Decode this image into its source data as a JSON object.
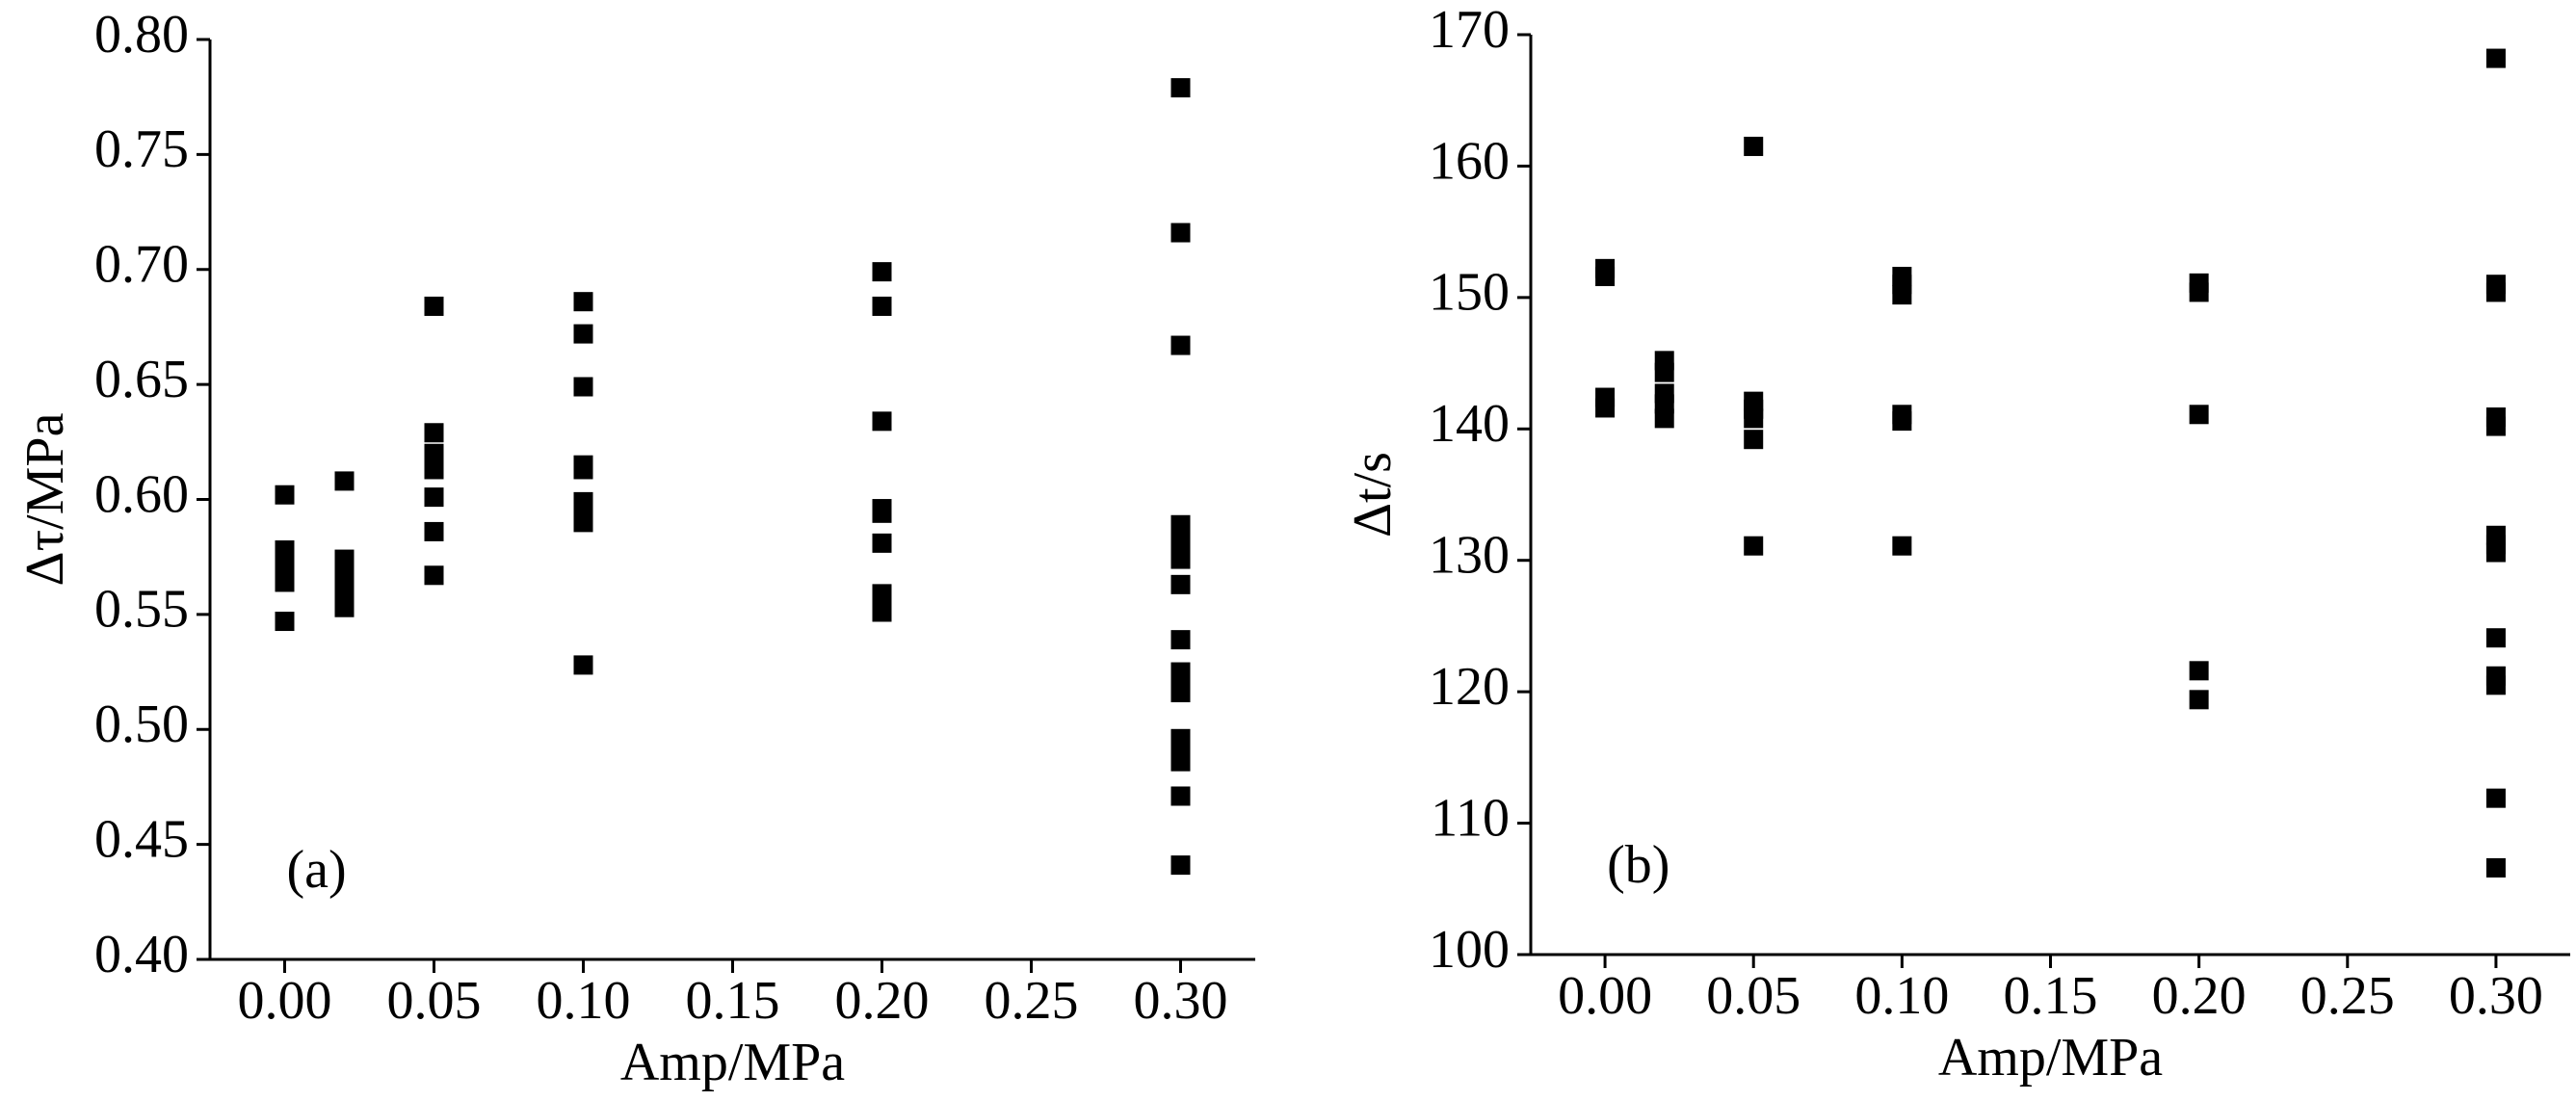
{
  "chart_data": [
    {
      "type": "scatter",
      "annotation": "(a)",
      "xlabel": "Amp/MPa",
      "ylabel": "Δτ/MPa",
      "color": "#000000",
      "x": [
        0,
        0,
        0,
        0,
        0,
        0.02,
        0.02,
        0.02,
        0.02,
        0.02,
        0.02,
        0.05,
        0.05,
        0.05,
        0.05,
        0.05,
        0.05,
        0.05,
        0.1,
        0.1,
        0.1,
        0.1,
        0.1,
        0.1,
        0.1,
        0.1,
        0.1,
        0.2,
        0.2,
        0.2,
        0.2,
        0.2,
        0.2,
        0.2,
        0.2,
        0.2,
        0.3,
        0.3,
        0.3,
        0.3,
        0.3,
        0.3,
        0.3,
        0.3,
        0.3,
        0.3,
        0.3,
        0.3,
        0.3,
        0.3,
        0.3,
        0.3,
        0.3
      ],
      "y": [
        0.602,
        0.578,
        0.571,
        0.564,
        0.547,
        0.608,
        0.574,
        0.566,
        0.561,
        0.557,
        0.553,
        0.684,
        0.629,
        0.62,
        0.613,
        0.601,
        0.586,
        0.567,
        0.686,
        0.672,
        0.649,
        0.615,
        0.613,
        0.599,
        0.594,
        0.59,
        0.528,
        0.699,
        0.684,
        0.634,
        0.596,
        0.594,
        0.581,
        0.559,
        0.554,
        0.551,
        0.779,
        0.716,
        0.667,
        0.589,
        0.584,
        0.579,
        0.574,
        0.563,
        0.539,
        0.525,
        0.52,
        0.516,
        0.496,
        0.492,
        0.486,
        0.471,
        0.441
      ],
      "xlim": [
        -0.025,
        0.325
      ],
      "xticks": [
        {
          "value": 0,
          "label": "0.00"
        },
        {
          "value": 0.05,
          "label": "0.05"
        },
        {
          "value": 0.1,
          "label": "0.10"
        },
        {
          "value": 0.15,
          "label": "0.15"
        },
        {
          "value": 0.2,
          "label": "0.20"
        },
        {
          "value": 0.25,
          "label": "0.25"
        },
        {
          "value": 0.3,
          "label": "0.30"
        }
      ],
      "ylim": [
        0.4,
        0.8
      ],
      "yticks": [
        {
          "value": 0.4,
          "label": "0.40"
        },
        {
          "value": 0.45,
          "label": "0.45"
        },
        {
          "value": 0.5,
          "label": "0.50"
        },
        {
          "value": 0.55,
          "label": "0.55"
        },
        {
          "value": 0.6,
          "label": "0.60"
        },
        {
          "value": 0.65,
          "label": "0.65"
        },
        {
          "value": 0.7,
          "label": "0.70"
        },
        {
          "value": 0.75,
          "label": "0.75"
        },
        {
          "value": 0.8,
          "label": "0.80"
        }
      ]
    },
    {
      "type": "scatter",
      "annotation": "(b)",
      "xlabel": "Amp/MPa",
      "ylabel": "Δt/s",
      "color": "#000000",
      "x": [
        0,
        0,
        0,
        0,
        0.02,
        0.02,
        0.02,
        0.02,
        0.02,
        0.05,
        0.05,
        0.05,
        0.05,
        0.05,
        0.05,
        0.1,
        0.1,
        0.1,
        0.1,
        0.1,
        0.1,
        0.2,
        0.2,
        0.2,
        0.2,
        0.2,
        0.3,
        0.3,
        0.3,
        0.3,
        0.3,
        0.3,
        0.3,
        0.3,
        0.3,
        0.3,
        0.3,
        0.3,
        0.3
      ],
      "y": [
        152.2,
        151.6,
        142.4,
        141.6,
        145.2,
        144.3,
        142.7,
        141.9,
        140.8,
        161.5,
        142.1,
        141.5,
        140.8,
        139.2,
        131.1,
        151.6,
        151.0,
        150.2,
        141.1,
        140.6,
        131.1,
        151.1,
        150.4,
        141.1,
        121.6,
        119.4,
        168.2,
        151.0,
        150.4,
        140.9,
        140.2,
        131.9,
        131.2,
        130.6,
        124.1,
        121.2,
        120.5,
        111.9,
        106.6
      ],
      "xlim": [
        -0.025,
        0.325
      ],
      "xticks": [
        {
          "value": 0,
          "label": "0.00"
        },
        {
          "value": 0.05,
          "label": "0.05"
        },
        {
          "value": 0.1,
          "label": "0.10"
        },
        {
          "value": 0.15,
          "label": "0.15"
        },
        {
          "value": 0.2,
          "label": "0.20"
        },
        {
          "value": 0.25,
          "label": "0.25"
        },
        {
          "value": 0.3,
          "label": "0.30"
        }
      ],
      "ylim": [
        100,
        170
      ],
      "yticks": [
        100,
        110,
        120,
        130,
        140,
        150,
        160,
        170
      ]
    }
  ]
}
